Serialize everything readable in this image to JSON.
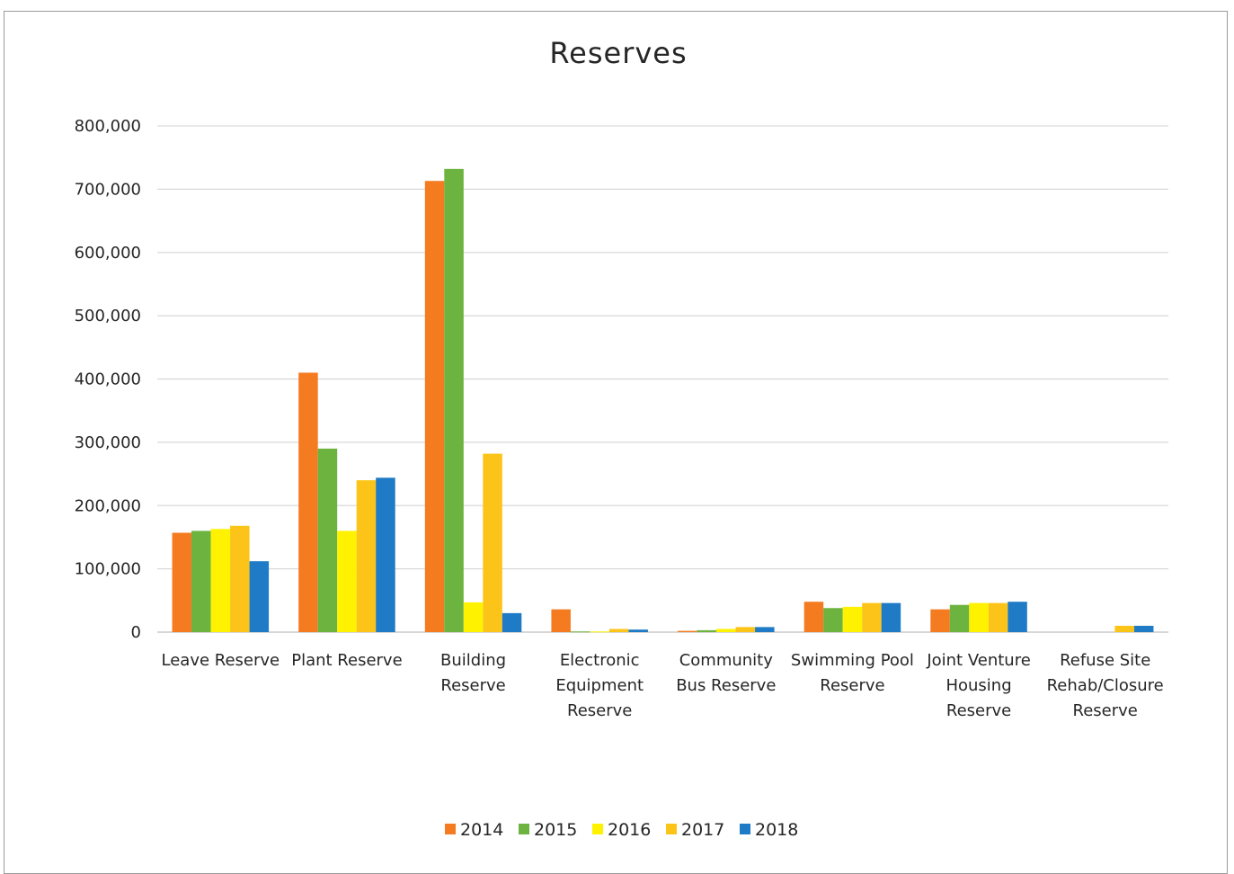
{
  "chart_data": {
    "type": "bar",
    "title": "Reserves",
    "xlabel": "",
    "ylabel": "",
    "ylim": [
      0,
      800000
    ],
    "yticks": [
      "0",
      "100,000",
      "200,000",
      "300,000",
      "400,000",
      "500,000",
      "600,000",
      "700,000",
      "800,000"
    ],
    "grid": true,
    "legend_position": "bottom",
    "categories": [
      [
        "Leave Reserve"
      ],
      [
        "Plant Reserve"
      ],
      [
        "Building",
        "Reserve"
      ],
      [
        "Electronic",
        "Equipment",
        "Reserve"
      ],
      [
        "Community",
        "Bus Reserve"
      ],
      [
        "Swimming Pool",
        "Reserve"
      ],
      [
        "Joint Venture",
        "Housing",
        "Reserve"
      ],
      [
        "Refuse Site",
        "Rehab/Closure",
        "Reserve"
      ]
    ],
    "series": [
      {
        "name": "2014",
        "color": "#F47B20",
        "values": [
          157000,
          410000,
          713000,
          36000,
          2000,
          48000,
          36000,
          0
        ]
      },
      {
        "name": "2015",
        "color": "#6CB33F",
        "values": [
          160000,
          290000,
          732000,
          1000,
          3000,
          38000,
          43000,
          0
        ]
      },
      {
        "name": "2016",
        "color": "#FFF200",
        "values": [
          163000,
          160000,
          47000,
          1000,
          5000,
          40000,
          46000,
          0
        ]
      },
      {
        "name": "2017",
        "color": "#FCC419",
        "values": [
          168000,
          240000,
          282000,
          5000,
          8000,
          46000,
          46000,
          10000
        ]
      },
      {
        "name": "2018",
        "color": "#1F7BC6",
        "values": [
          112000,
          244000,
          30000,
          4000,
          8000,
          46000,
          48000,
          10000
        ]
      }
    ]
  }
}
